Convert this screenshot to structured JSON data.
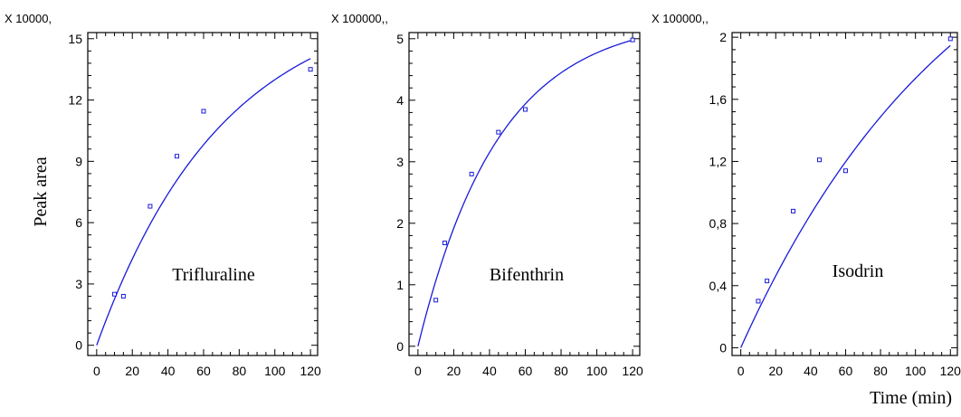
{
  "ylabel": "Peak area",
  "xlabel": "Time (min)",
  "colors": {
    "curve": "#1a1adb",
    "points": "#1a1adb",
    "axes": "#000000"
  },
  "chart_data": [
    {
      "type": "scatter",
      "title": "Trifluraline",
      "multiplier": "X 10000,",
      "x_ticks": [
        0,
        20,
        40,
        60,
        80,
        100,
        120
      ],
      "y_ticks": [
        0,
        3,
        6,
        9,
        12,
        15
      ],
      "y_tick_labels": [
        "0",
        "3",
        "6",
        "9",
        "12",
        "15"
      ],
      "xlim": [
        -5,
        124
      ],
      "ylim": [
        -0.5,
        15.3
      ],
      "series": [
        {
          "x": [
            10,
            15,
            30,
            45,
            60,
            120
          ],
          "y": [
            2.5,
            2.4,
            6.8,
            9.25,
            11.45,
            13.5
          ]
        }
      ],
      "fit": {
        "model": "a*(1-exp(-x/tau))",
        "a": 17.2,
        "tau": 71
      }
    },
    {
      "type": "scatter",
      "title": "Bifenthrin",
      "multiplier": "X 100000,,",
      "x_ticks": [
        0,
        20,
        40,
        60,
        80,
        100,
        120
      ],
      "y_ticks": [
        0,
        1,
        2,
        3,
        4,
        5
      ],
      "y_tick_labels": [
        "0",
        "1",
        "2",
        "3",
        "4",
        "5"
      ],
      "xlim": [
        -5,
        124
      ],
      "ylim": [
        -0.15,
        5.1
      ],
      "series": [
        {
          "x": [
            10,
            15,
            30,
            45,
            60,
            120
          ],
          "y": [
            0.75,
            1.68,
            2.8,
            3.48,
            3.85,
            4.98
          ]
        }
      ],
      "fit": {
        "model": "a*(1-exp(-x/tau))",
        "a": 5.35,
        "tau": 45
      }
    },
    {
      "type": "scatter",
      "title": "Isodrin",
      "multiplier": "X 100000,,",
      "x_ticks": [
        0,
        20,
        40,
        60,
        80,
        100,
        120
      ],
      "y_ticks": [
        0,
        0.4,
        0.8,
        1.2,
        1.6,
        2
      ],
      "y_tick_labels": [
        "0",
        "0,4",
        "0,8",
        "1,2",
        "1,6",
        "2"
      ],
      "xlim": [
        -5,
        124
      ],
      "ylim": [
        -0.05,
        2.03
      ],
      "series": [
        {
          "x": [
            10,
            15,
            30,
            45,
            60,
            120
          ],
          "y": [
            0.3,
            0.43,
            0.88,
            1.21,
            1.14,
            1.99
          ]
        }
      ],
      "fit": {
        "model": "a*(1-exp(-x/tau))",
        "a": 3.2,
        "tau": 128
      }
    }
  ]
}
